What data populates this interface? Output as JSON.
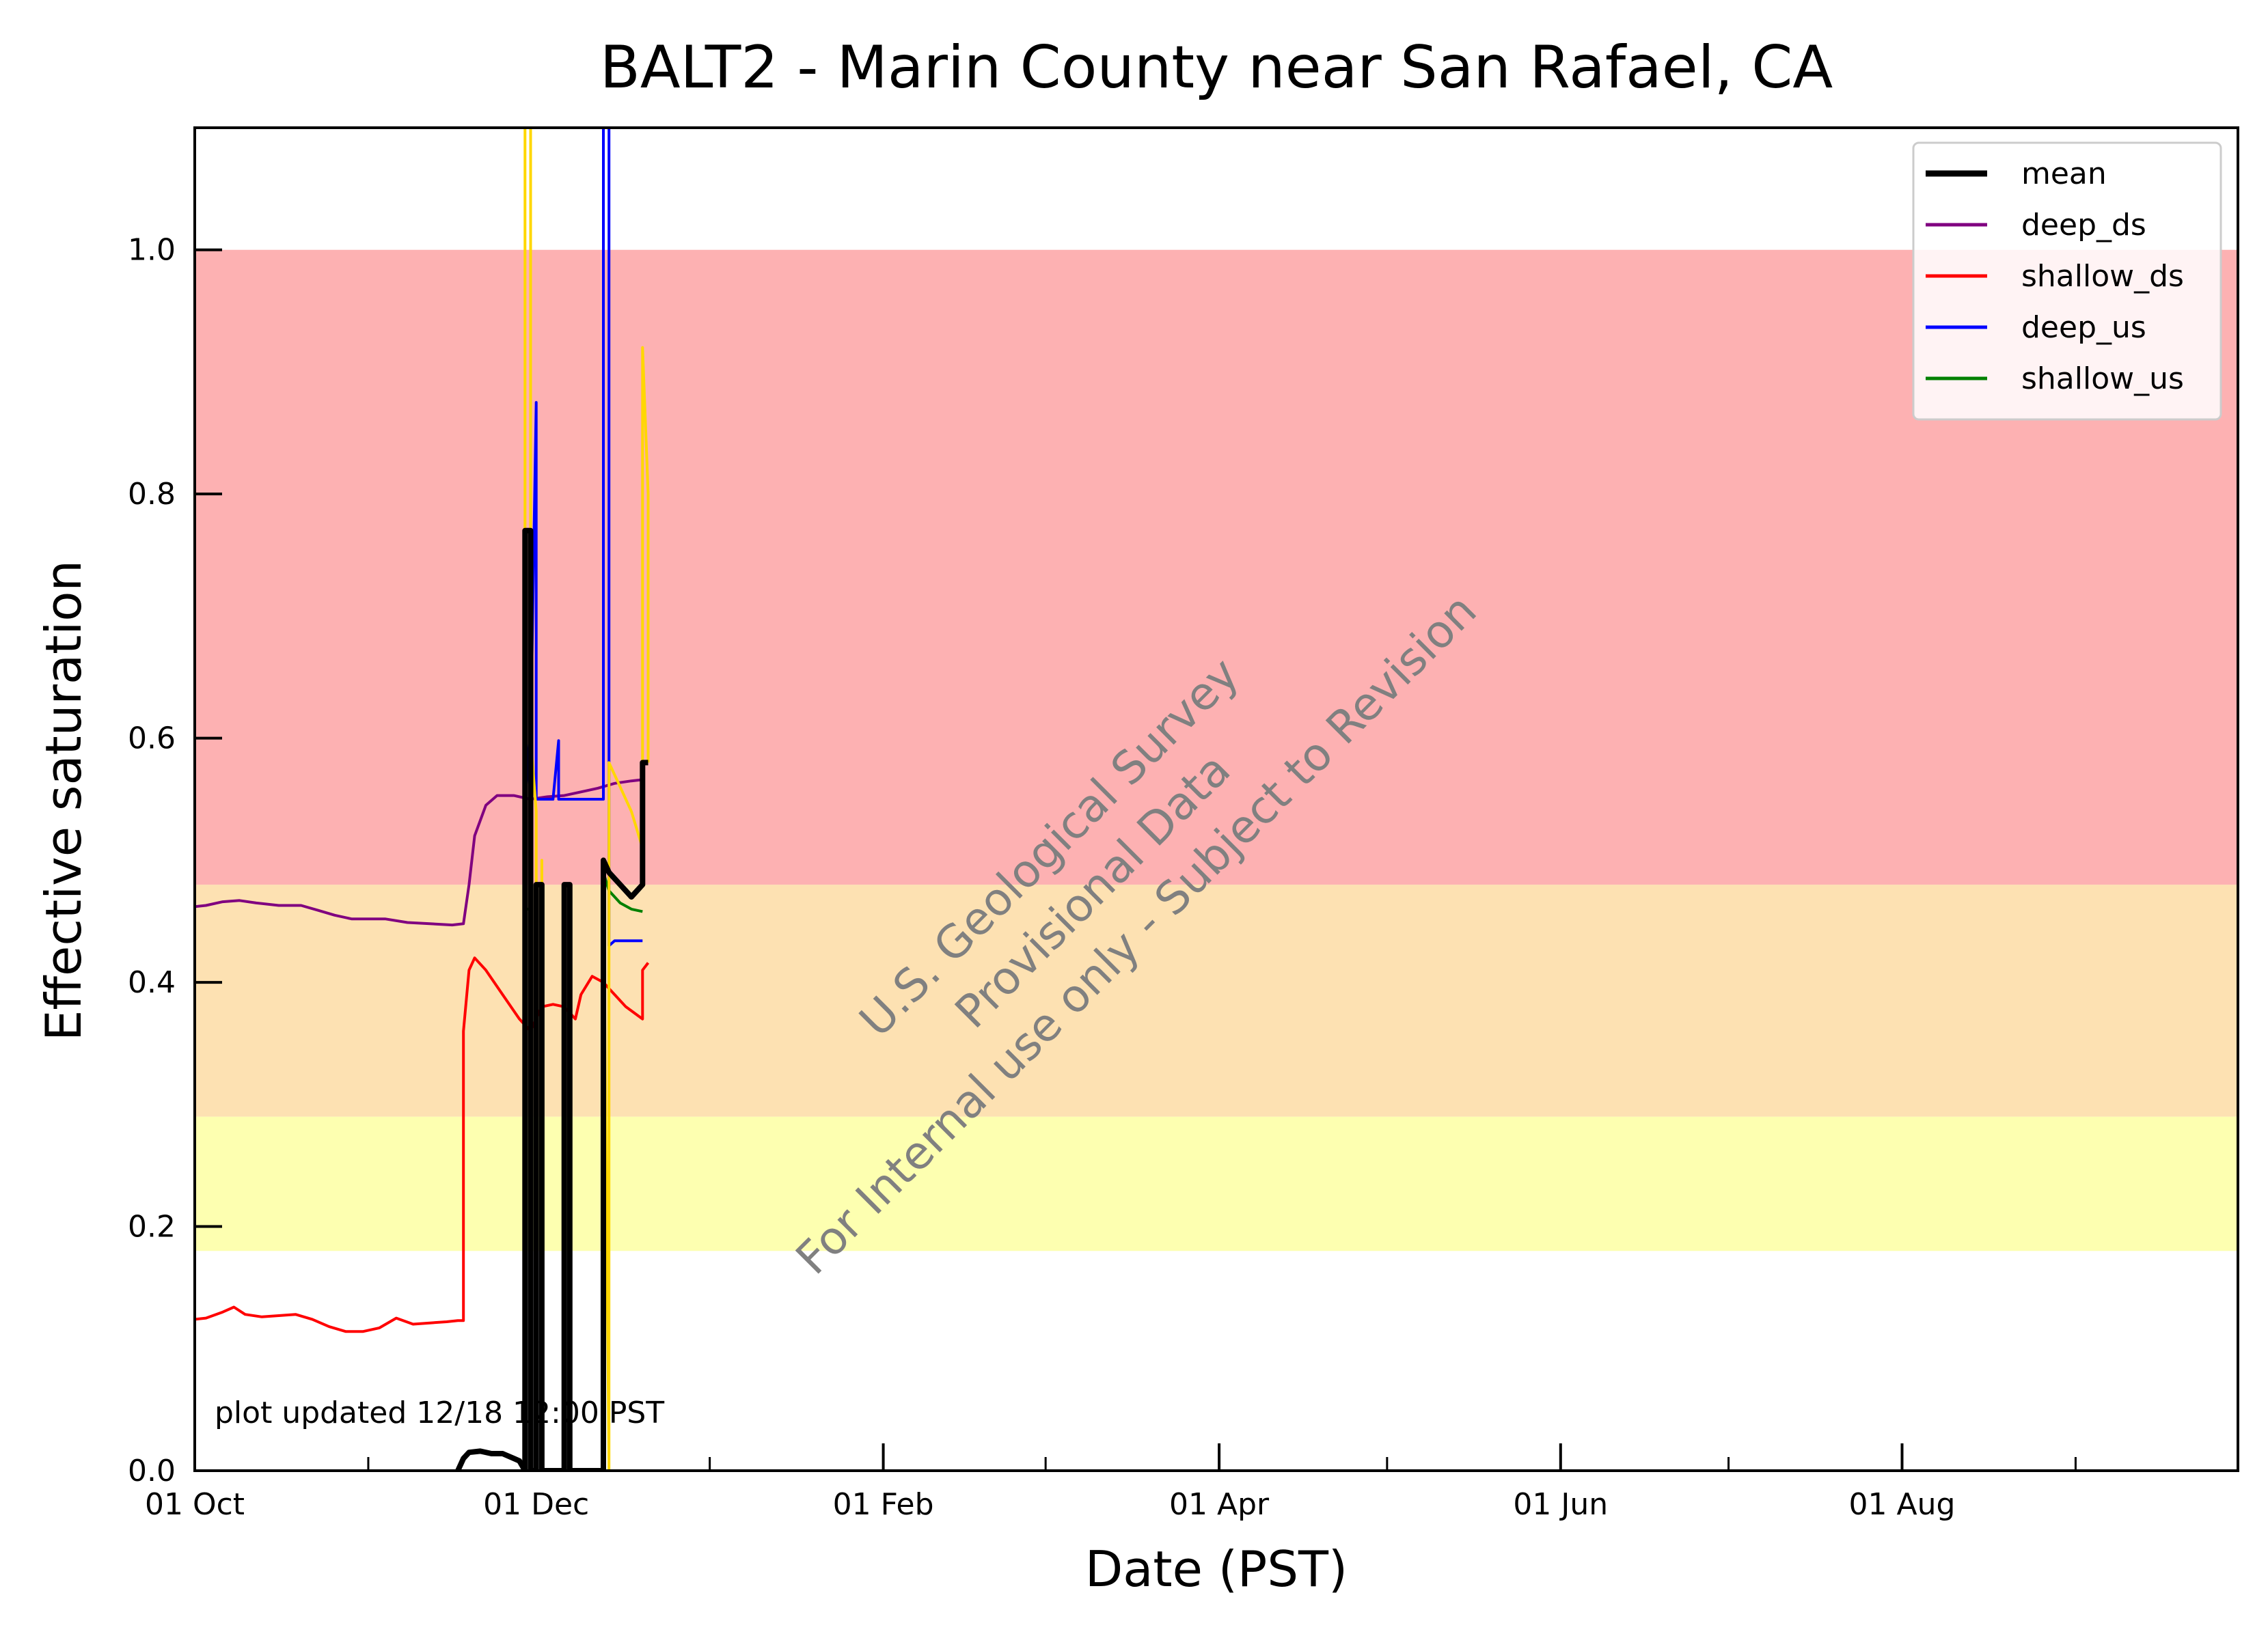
{
  "chart_data": {
    "type": "line",
    "title": "BALT2 - Marin County near San Rafael, CA",
    "xlabel": "Date (PST)",
    "ylabel": "Effective saturation",
    "x_unit": "date",
    "xlim": [
      "2023-10-01",
      "2024-09-30"
    ],
    "ylim": [
      0,
      1.1
    ],
    "x_ticks": [
      {
        "date": "2023-10-01",
        "label": "01 Oct"
      },
      {
        "date": "2023-12-01",
        "label": "01 Dec"
      },
      {
        "date": "2024-02-01",
        "label": "01 Feb"
      },
      {
        "date": "2024-04-01",
        "label": "01 Apr"
      },
      {
        "date": "2024-06-01",
        "label": "01 Jun"
      },
      {
        "date": "2024-08-01",
        "label": "01 Aug"
      }
    ],
    "x_minor_ticks": [
      "2023-11-01",
      "2024-01-01",
      "2024-03-01",
      "2024-05-01",
      "2024-07-01",
      "2024-09-01"
    ],
    "y_ticks": [
      {
        "value": 0,
        "label": "0.0"
      },
      {
        "value": 0.2,
        "label": "0.2"
      },
      {
        "value": 0.4,
        "label": "0.4"
      },
      {
        "value": 0.6,
        "label": "0.6"
      },
      {
        "value": 0.8,
        "label": "0.8"
      },
      {
        "value": 1.0,
        "label": "1.0"
      }
    ],
    "bands": [
      {
        "from": 0.18,
        "to": 0.29,
        "color": "#fdffb0"
      },
      {
        "from": 0.29,
        "to": 0.48,
        "color": "#fde1b2"
      },
      {
        "from": 0.48,
        "to": 1.0,
        "color": "#fdb1b2"
      }
    ],
    "legend_position": "top-right",
    "series": [
      {
        "name": "mean",
        "color": "#000000",
        "width": 8,
        "points": [
          [
            "2023-11-17",
            0.0
          ],
          [
            "2023-11-18",
            0.01
          ],
          [
            "2023-11-19",
            0.015
          ],
          [
            "2023-11-21",
            0.016
          ],
          [
            "2023-11-23",
            0.014
          ],
          [
            "2023-11-25",
            0.014
          ],
          [
            "2023-11-27",
            0.01
          ],
          [
            "2023-11-28",
            0.008
          ],
          [
            "2023-11-29",
            0.0
          ],
          [
            "2023-11-29",
            0.77
          ],
          [
            "2023-11-30",
            0.77
          ],
          [
            "2023-11-30",
            0.0
          ],
          [
            "2023-12-01",
            0.0
          ],
          [
            "2023-12-01",
            0.48
          ],
          [
            "2023-12-02",
            0.48
          ],
          [
            "2023-12-02",
            0.0
          ],
          [
            "2023-12-06",
            0.0
          ],
          [
            "2023-12-06",
            0.48
          ],
          [
            "2023-12-07",
            0.48
          ],
          [
            "2023-12-07",
            0.0
          ],
          [
            "2023-12-13",
            0.0
          ],
          [
            "2023-12-13",
            0.5
          ],
          [
            "2023-12-14",
            0.49
          ],
          [
            "2023-12-16",
            0.48
          ],
          [
            "2023-12-18",
            0.47
          ],
          [
            "2023-12-20",
            0.48
          ],
          [
            "2023-12-20",
            0.58
          ],
          [
            "2023-12-21",
            0.58
          ]
        ]
      },
      {
        "name": "deep_ds",
        "color": "#800080",
        "width": 4,
        "points": [
          [
            "2023-10-01",
            0.462
          ],
          [
            "2023-10-03",
            0.463
          ],
          [
            "2023-10-06",
            0.466
          ],
          [
            "2023-10-09",
            0.467
          ],
          [
            "2023-10-12",
            0.465
          ],
          [
            "2023-10-16",
            0.463
          ],
          [
            "2023-10-20",
            0.463
          ],
          [
            "2023-10-23",
            0.459
          ],
          [
            "2023-10-26",
            0.455
          ],
          [
            "2023-10-29",
            0.452
          ],
          [
            "2023-11-01",
            0.452
          ],
          [
            "2023-11-04",
            0.452
          ],
          [
            "2023-11-08",
            0.449
          ],
          [
            "2023-11-12",
            0.448
          ],
          [
            "2023-11-16",
            0.447
          ],
          [
            "2023-11-18",
            0.448
          ],
          [
            "2023-11-19",
            0.48
          ],
          [
            "2023-11-20",
            0.52
          ],
          [
            "2023-11-22",
            0.545
          ],
          [
            "2023-11-24",
            0.553
          ],
          [
            "2023-11-27",
            0.553
          ],
          [
            "2023-11-30",
            0.55
          ],
          [
            "2023-12-03",
            0.552
          ],
          [
            "2023-12-06",
            0.553
          ],
          [
            "2023-12-09",
            0.556
          ],
          [
            "2023-12-12",
            0.559
          ],
          [
            "2023-12-15",
            0.563
          ],
          [
            "2023-12-18",
            0.565
          ],
          [
            "2023-12-20",
            0.566
          ]
        ]
      },
      {
        "name": "shallow_ds",
        "color": "#ff0000",
        "width": 4,
        "points": [
          [
            "2023-10-01",
            0.124
          ],
          [
            "2023-10-03",
            0.125
          ],
          [
            "2023-10-06",
            0.13
          ],
          [
            "2023-10-08",
            0.134
          ],
          [
            "2023-10-10",
            0.128
          ],
          [
            "2023-10-13",
            0.126
          ],
          [
            "2023-10-16",
            0.127
          ],
          [
            "2023-10-19",
            0.128
          ],
          [
            "2023-10-22",
            0.124
          ],
          [
            "2023-10-25",
            0.118
          ],
          [
            "2023-10-28",
            0.114
          ],
          [
            "2023-10-31",
            0.114
          ],
          [
            "2023-11-03",
            0.117
          ],
          [
            "2023-11-06",
            0.125
          ],
          [
            "2023-11-09",
            0.12
          ],
          [
            "2023-11-12",
            0.121
          ],
          [
            "2023-11-15",
            0.122
          ],
          [
            "2023-11-17",
            0.123
          ],
          [
            "2023-11-18",
            0.123
          ],
          [
            "2023-11-18",
            0.36
          ],
          [
            "2023-11-19",
            0.41
          ],
          [
            "2023-11-20",
            0.42
          ],
          [
            "2023-11-22",
            0.41
          ],
          [
            "2023-11-25",
            0.39
          ],
          [
            "2023-11-28",
            0.37
          ],
          [
            "2023-11-30",
            0.36
          ],
          [
            "2023-12-02",
            0.38
          ],
          [
            "2023-12-04",
            0.382
          ],
          [
            "2023-12-06",
            0.38
          ],
          [
            "2023-12-08",
            0.37
          ],
          [
            "2023-12-09",
            0.39
          ],
          [
            "2023-12-11",
            0.405
          ],
          [
            "2023-12-13",
            0.4
          ],
          [
            "2023-12-15",
            0.39
          ],
          [
            "2023-12-17",
            0.38
          ],
          [
            "2023-12-20",
            0.37
          ],
          [
            "2023-12-20",
            0.41
          ],
          [
            "2023-12-21",
            0.416
          ]
        ]
      },
      {
        "name": "deep_us",
        "color": "#0000ff",
        "width": 4,
        "points": [
          [
            "2023-11-29",
            0.0
          ],
          [
            "2023-11-29",
            0.55
          ],
          [
            "2023-11-30",
            0.61
          ],
          [
            "2023-11-30",
            0.6
          ],
          [
            "2023-12-01",
            0.875
          ],
          [
            "2023-12-01",
            0.55
          ],
          [
            "2023-12-04",
            0.55
          ],
          [
            "2023-12-05",
            0.598
          ],
          [
            "2023-12-05",
            0.55
          ],
          [
            "2023-12-07",
            0.55
          ],
          [
            "2023-12-13",
            0.55
          ],
          [
            "2023-12-13",
            1.1
          ],
          [
            "2023-12-14",
            1.1
          ],
          [
            "2023-12-14",
            0.43
          ],
          [
            "2023-12-15",
            0.434
          ],
          [
            "2023-12-20",
            0.434
          ]
        ]
      },
      {
        "name": "shallow_us",
        "color": "#008000",
        "width": 4,
        "points": [
          [
            "2023-11-29",
            0.0
          ],
          [
            "2023-11-29",
            0.46
          ],
          [
            "2023-11-30",
            0.46
          ],
          [
            "2023-11-30",
            0.0
          ],
          [
            "2023-12-13",
            0.0
          ],
          [
            "2023-12-13",
            0.49
          ],
          [
            "2023-12-14",
            0.475
          ],
          [
            "2023-12-16",
            0.465
          ],
          [
            "2023-12-18",
            0.46
          ],
          [
            "2023-12-20",
            0.458
          ]
        ]
      },
      {
        "name": "",
        "color": "#ffd700",
        "width": 4,
        "points": [
          [
            "2023-11-29",
            0.0
          ],
          [
            "2023-11-29",
            1.1
          ],
          [
            "2023-11-30",
            1.1
          ],
          [
            "2023-11-30",
            0.45
          ],
          [
            "2023-11-30",
            0.6
          ],
          [
            "2023-12-01",
            0.54
          ],
          [
            "2023-12-01",
            0.0
          ],
          [
            "2023-12-02",
            0.0
          ],
          [
            "2023-12-02",
            0.5
          ],
          [
            "2023-12-02",
            0.0
          ],
          [
            "2023-12-06",
            0.0
          ],
          [
            "2023-12-06",
            0.48
          ],
          [
            "2023-12-07",
            0.48
          ],
          [
            "2023-12-07",
            0.0
          ],
          [
            "2023-12-13",
            0.0
          ],
          [
            "2023-12-13",
            0.5
          ],
          [
            "2023-12-14",
            0.0
          ],
          [
            "2023-12-14",
            0.58
          ],
          [
            "2023-12-16",
            0.56
          ],
          [
            "2023-12-18",
            0.54
          ],
          [
            "2023-12-20",
            0.51
          ],
          [
            "2023-12-20",
            0.92
          ],
          [
            "2023-12-21",
            0.8
          ],
          [
            "2023-12-21",
            0.58
          ]
        ]
      }
    ]
  },
  "note": "plot updated 12/18 12:00  PST",
  "watermark": {
    "line1": "U.S. Geological Survey",
    "line2": "Provisional Data",
    "line3": "For Internal use only - Subject to Revision"
  }
}
